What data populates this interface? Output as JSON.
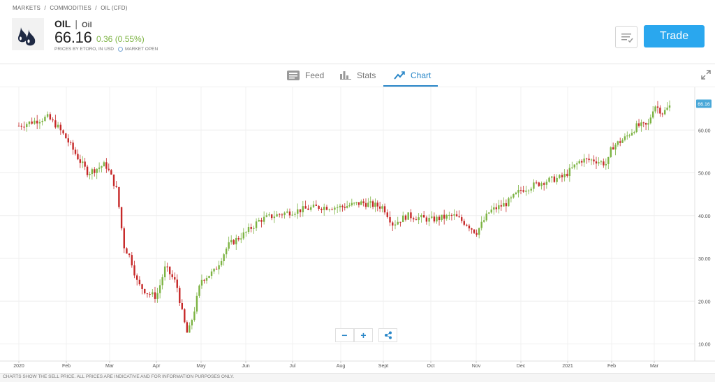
{
  "breadcrumb": [
    "MARKETS",
    "/",
    "COMMODITIES",
    "/",
    "OIL (CFD)"
  ],
  "instrument": {
    "symbol": "OIL",
    "name": "Oil",
    "price": "66.16",
    "change": "0.36 (0.55%)",
    "prices_note": "PRICES BY ETORO, IN USD",
    "market_status": "MARKET OPEN"
  },
  "actions": {
    "trade_label": "Trade",
    "watchlist_icon": "watchlist-icon"
  },
  "tabs": [
    {
      "label": "Feed",
      "icon": "feed-icon",
      "active": false
    },
    {
      "label": "Stats",
      "icon": "stats-icon",
      "active": false
    },
    {
      "label": "Chart",
      "icon": "chart-icon",
      "active": true
    }
  ],
  "zoom": {
    "minus": "−",
    "plus": "+",
    "share_icon": "share-icon"
  },
  "footer_note": "CHARTS SHOW THE SELL PRICE. ALL PRICES ARE INDICATIVE AND FOR INFORMATION PURPOSES ONLY.",
  "colors": {
    "up": "#7cb342",
    "down": "#c62828",
    "accent": "#2aa7ee",
    "active_tab": "#2a87c8"
  },
  "chart_data": {
    "type": "candlestick",
    "x_labels": [
      "2020",
      "Feb",
      "Mar",
      "Apr",
      "May",
      "Jun",
      "Jul",
      "Aug",
      "Sept",
      "Oct",
      "Nov",
      "Dec",
      "2021",
      "Feb",
      "Mar"
    ],
    "y_ticks": [
      "10.00",
      "20.00",
      "30.00",
      "40.00",
      "50.00",
      "60.00"
    ],
    "ylim": [
      6,
      70
    ],
    "last_price_label": "66.16",
    "grid": true,
    "series": [
      {
        "t": 0,
        "v": 61
      },
      {
        "t": 0.3,
        "v": 62
      },
      {
        "t": 0.6,
        "v": 63
      },
      {
        "t": 0.8,
        "v": 61
      },
      {
        "t": 1,
        "v": 58
      },
      {
        "t": 1.3,
        "v": 53
      },
      {
        "t": 1.5,
        "v": 50
      },
      {
        "t": 1.7,
        "v": 51
      },
      {
        "t": 1.9,
        "v": 52
      },
      {
        "t": 2.0,
        "v": 50
      },
      {
        "t": 2.15,
        "v": 46
      },
      {
        "t": 2.2,
        "v": 42
      },
      {
        "t": 2.3,
        "v": 33
      },
      {
        "t": 2.45,
        "v": 30
      },
      {
        "t": 2.6,
        "v": 24
      },
      {
        "t": 2.8,
        "v": 22
      },
      {
        "t": 3.0,
        "v": 21
      },
      {
        "t": 3.2,
        "v": 28
      },
      {
        "t": 3.45,
        "v": 24
      },
      {
        "t": 3.6,
        "v": 16
      },
      {
        "t": 3.7,
        "v": 12
      },
      {
        "t": 3.85,
        "v": 18
      },
      {
        "t": 4.0,
        "v": 25
      },
      {
        "t": 4.3,
        "v": 27
      },
      {
        "t": 4.6,
        "v": 33
      },
      {
        "t": 5.0,
        "v": 36
      },
      {
        "t": 5.3,
        "v": 39
      },
      {
        "t": 5.6,
        "v": 40
      },
      {
        "t": 6.0,
        "v": 41
      },
      {
        "t": 6.5,
        "v": 42
      },
      {
        "t": 7.0,
        "v": 42
      },
      {
        "t": 7.5,
        "v": 43
      },
      {
        "t": 8.0,
        "v": 42
      },
      {
        "t": 8.2,
        "v": 38
      },
      {
        "t": 8.5,
        "v": 40
      },
      {
        "t": 9.0,
        "v": 39
      },
      {
        "t": 9.5,
        "v": 40
      },
      {
        "t": 9.8,
        "v": 38
      },
      {
        "t": 10.0,
        "v": 36
      },
      {
        "t": 10.3,
        "v": 41
      },
      {
        "t": 10.7,
        "v": 43
      },
      {
        "t": 11.0,
        "v": 46
      },
      {
        "t": 11.5,
        "v": 48
      },
      {
        "t": 11.9,
        "v": 49
      },
      {
        "t": 12.0,
        "v": 50
      },
      {
        "t": 12.3,
        "v": 53
      },
      {
        "t": 12.6,
        "v": 53
      },
      {
        "t": 12.9,
        "v": 52
      },
      {
        "t": 13.0,
        "v": 56
      },
      {
        "t": 13.3,
        "v": 58
      },
      {
        "t": 13.6,
        "v": 61
      },
      {
        "t": 13.85,
        "v": 61
      },
      {
        "t": 14.0,
        "v": 66
      },
      {
        "t": 14.2,
        "v": 64
      },
      {
        "t": 14.4,
        "v": 66
      }
    ]
  }
}
